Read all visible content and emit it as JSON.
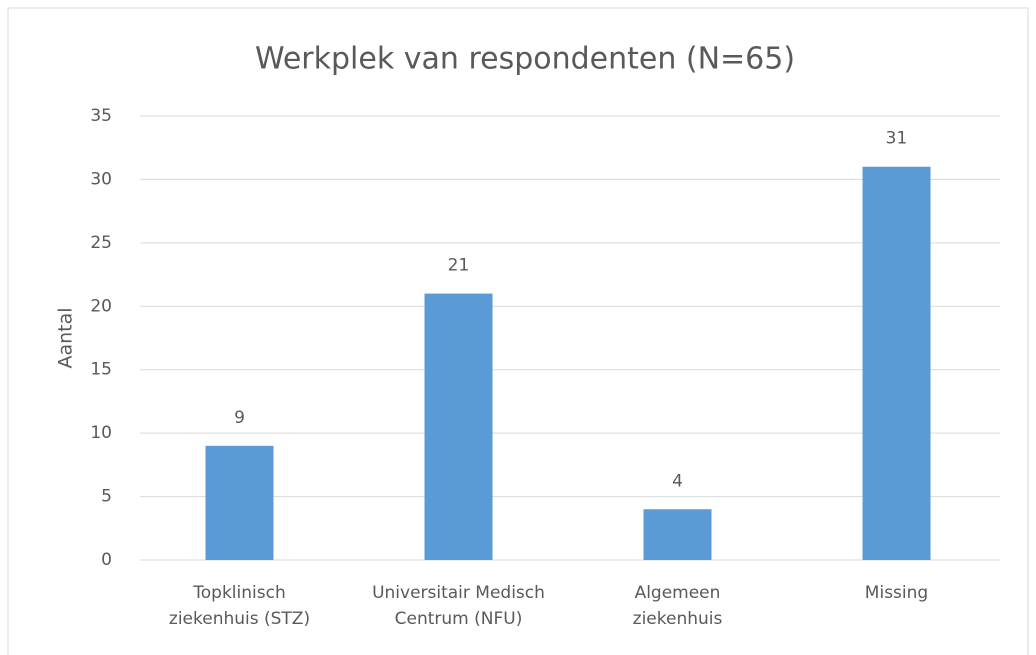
{
  "chart_data": {
    "type": "bar",
    "title": "Werkplek van respondenten (N=65)",
    "y_label": "Aantal",
    "categories": [
      "Topklinisch\nziekenhuis (STZ)",
      "Universitair Medisch\nCentrum (NFU)",
      "Algemeen\nziekenhuis",
      "Missing"
    ],
    "values": [
      9,
      21,
      4,
      31
    ],
    "color": "#5b9bd5",
    "ylim": [
      0,
      35
    ],
    "yticks": [
      0,
      5,
      10,
      15,
      20,
      25,
      30,
      35
    ],
    "grid": true,
    "data_labels": true
  }
}
